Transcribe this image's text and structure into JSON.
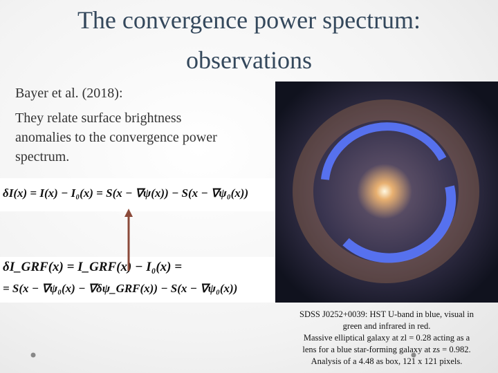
{
  "slide": {
    "title": [
      "The convergence power spectrum:",
      "observations"
    ],
    "body": [
      "Bayer et al. (2018):",
      "They relate surface brightness",
      "anomalies to the convergence power",
      "spectrum."
    ],
    "equations": [
      "δI(x) = I(x) − I₀(x) = S(x − ∇ψ(x)) − S(x − ∇ψ₀(x))",
      "δI_GRF(x) = I_GRF(x) − I₀(x) =",
      "= S(x − ∇ψ₀(x) − ∇δψ_GRF(x)) − S(x − ∇ψ₀(x))"
    ],
    "caption": [
      "SDSS J0252+0039: HST U-band in blue, visual in",
      "green and infrared in red.",
      "Massive elliptical galaxy at zl = 0.28 acting as a",
      "lens for a blue star-forming galaxy at zs = 0.982.",
      "Analysis of a 4.48 as box, 121 x 121 pixels."
    ]
  }
}
